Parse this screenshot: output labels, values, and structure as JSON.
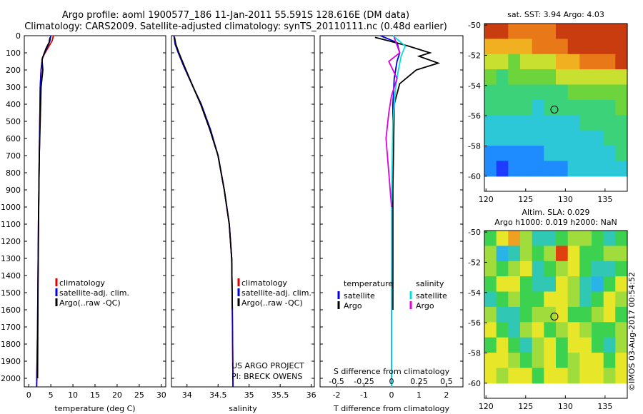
{
  "header": {
    "title_line1": "Argo profile: aoml 1900577_186 11-Jan-2011 55.591S 128.616E (DM data)",
    "title_line2": "Climatology: CARS2009. Satellite-adjusted climatology: synTS_20110111.nc (0.48d earlier)"
  },
  "credit": {
    "project": "US ARGO PROJECT",
    "pi": "PI: BRECK OWENS",
    "stamp": "©IMOS 03-Aug-2017 00:54:52"
  },
  "chart_data": [
    {
      "id": "temperature",
      "type": "line",
      "xlabel": "temperature (deg C)",
      "ylabel": "",
      "xlim": [
        -1,
        31
      ],
      "ylim": [
        2050,
        0
      ],
      "xticks": [
        0,
        5,
        10,
        15,
        20,
        25,
        30
      ],
      "yticks": [
        0,
        100,
        200,
        300,
        400,
        500,
        600,
        700,
        800,
        900,
        1000,
        1100,
        1200,
        1300,
        1400,
        1500,
        1600,
        1700,
        1800,
        1900,
        2000
      ],
      "legend": [
        "climatology",
        "satellite-adj. clim.",
        "Argo(..raw -QC)"
      ],
      "legend_colors": [
        "#e00000",
        "#0000e0",
        "#000000"
      ],
      "series": [
        {
          "name": "climatology",
          "color": "#e00000",
          "x": [
            5.6,
            5.3,
            4.6,
            3.7,
            3.1,
            2.8,
            2.6,
            2.5,
            2.4,
            2.3,
            2.2,
            2.1,
            2.0,
            1.9,
            1.8
          ],
          "y": [
            0,
            30,
            60,
            100,
            130,
            200,
            300,
            500,
            700,
            900,
            1100,
            1400,
            1700,
            1900,
            2050
          ]
        },
        {
          "name": "satellite-adj. clim.",
          "color": "#0000e0",
          "x": [
            5.0,
            4.8,
            4.3,
            3.6,
            3.1,
            2.8,
            2.6,
            2.5,
            2.4,
            2.3,
            2.2,
            2.1,
            2.0,
            1.9,
            1.8
          ],
          "y": [
            0,
            30,
            60,
            100,
            130,
            200,
            300,
            500,
            700,
            900,
            1100,
            1400,
            1700,
            1900,
            2050
          ]
        },
        {
          "name": "Argo(..raw -QC)",
          "color": "#000000",
          "x": [
            4.8,
            4.6,
            4.0,
            3.4,
            3.0,
            3.2,
            2.8,
            2.6,
            2.4,
            2.3,
            2.2,
            2.1,
            2.0
          ],
          "y": [
            10,
            40,
            70,
            110,
            140,
            200,
            300,
            500,
            700,
            900,
            1200,
            1500,
            2000
          ]
        }
      ]
    },
    {
      "id": "salinity",
      "type": "line",
      "xlabel": "salinity",
      "ylabel": "",
      "xlim": [
        33.75,
        36.05
      ],
      "ylim": [
        2050,
        0
      ],
      "xticks": [
        34,
        34.5,
        35,
        35.5,
        36
      ],
      "legend": [
        "climatology",
        "satellite-adj. clim.",
        "Argo(..raw -QC)"
      ],
      "legend_colors": [
        "#e00000",
        "#0000e0",
        "#000000"
      ],
      "series": [
        {
          "name": "climatology",
          "color": "#e00000",
          "x": [
            33.79,
            33.81,
            33.86,
            33.95,
            34.1,
            34.22,
            34.37,
            34.5,
            34.6,
            34.68,
            34.72,
            34.73,
            34.74
          ],
          "y": [
            0,
            50,
            100,
            180,
            300,
            400,
            550,
            700,
            900,
            1100,
            1300,
            1600,
            2050
          ]
        },
        {
          "name": "satellite-adj. clim.",
          "color": "#0000e0",
          "x": [
            33.79,
            33.81,
            33.86,
            33.95,
            34.1,
            34.23,
            34.38,
            34.5,
            34.6,
            34.68,
            34.72,
            34.73,
            34.74
          ],
          "y": [
            0,
            50,
            100,
            180,
            300,
            400,
            550,
            700,
            900,
            1100,
            1300,
            1600,
            2050
          ]
        },
        {
          "name": "Argo(..raw -QC)",
          "color": "#000000",
          "x": [
            33.8,
            33.82,
            33.87,
            33.96,
            34.1,
            34.22,
            34.37,
            34.5,
            34.6,
            34.68,
            34.72,
            34.73
          ],
          "y": [
            10,
            50,
            100,
            180,
            300,
            400,
            550,
            700,
            900,
            1100,
            1300,
            1600
          ]
        }
      ]
    },
    {
      "id": "difference",
      "type": "line",
      "xlabel": "T difference from climatology",
      "xlabel_top": "S difference from climatology",
      "xlim": [
        -2.6,
        2.6
      ],
      "ylim": [
        2050,
        0
      ],
      "xticks": [
        -2,
        -1,
        0,
        1,
        2
      ],
      "xticks_top": [
        -0.5,
        -0.25,
        0,
        0.25,
        0.5
      ],
      "xticks_top_labels": [
        "-0.5",
        "-0.25",
        "0",
        "0.25",
        "0.5"
      ],
      "legend_headers": [
        "temperature",
        "salinity"
      ],
      "legend_left": [
        "satellite",
        "Argo"
      ],
      "legend_left_colors": [
        "#0000e0",
        "#000000"
      ],
      "legend_right": [
        "satellite",
        "Argo"
      ],
      "legend_right_colors": [
        "#00e0e0",
        "#e000e0"
      ],
      "series": [
        {
          "name": "T satellite",
          "color": "#0000e0",
          "x": [
            -0.4,
            0.2,
            0.3,
            0.2,
            0.1,
            0.05,
            0.05,
            0.03,
            0.0,
            0.0
          ],
          "y": [
            0,
            40,
            100,
            150,
            250,
            400,
            700,
            1000,
            1500,
            2050
          ]
        },
        {
          "name": "T Argo",
          "color": "#000000",
          "x": [
            -0.6,
            -0.1,
            0.6,
            1.4,
            1.0,
            1.7,
            0.9,
            0.3,
            0.1,
            0.08,
            0.05,
            0.05,
            0.05
          ],
          "y": [
            10,
            30,
            60,
            100,
            120,
            160,
            200,
            280,
            400,
            600,
            900,
            1300,
            1600
          ]
        },
        {
          "name": "S satellite",
          "color": "#00e0e0",
          "x": [
            0.05,
            0.5,
            0.35,
            0.25,
            0.15,
            0.05,
            0.0,
            0.0
          ],
          "y": [
            0,
            60,
            120,
            200,
            300,
            500,
            1000,
            2050
          ]
        },
        {
          "name": "S Argo",
          "color": "#e000e0",
          "x": [
            0.1,
            0.3,
            -0.1,
            0.2,
            0.0,
            -0.1,
            -0.2,
            -0.1,
            0.0
          ],
          "y": [
            10,
            100,
            150,
            250,
            350,
            450,
            600,
            800,
            1000
          ]
        }
      ]
    },
    {
      "id": "sst_map",
      "type": "heatmap",
      "title": "sat. SST: 3.94 Argo: 4.03",
      "xticks": [
        120,
        125,
        130,
        135
      ],
      "yticks": [
        -50,
        -52,
        -54,
        -56,
        -58,
        -60
      ],
      "xlim": [
        119.8,
        137.8
      ],
      "ylim": [
        -61,
        -49.9
      ],
      "data_extent_lat": [
        -60,
        -49.9
      ],
      "marker": {
        "lon": 128.616,
        "lat": -55.591
      },
      "values": [
        [
          9.5,
          9.3,
          9.0,
          8.6,
          8.8,
          9.0,
          9.4,
          9.6,
          9.8,
          9.9,
          10.0,
          10.0
        ],
        [
          8.0,
          7.6,
          7.4,
          7.8,
          8.2,
          8.6,
          9.0,
          9.2,
          9.5,
          9.7,
          9.8,
          9.9
        ],
        [
          6.0,
          5.6,
          5.0,
          6.2,
          6.6,
          7.0,
          7.6,
          7.8,
          8.4,
          8.6,
          9.0,
          9.2
        ],
        [
          4.8,
          4.4,
          4.8,
          5.2,
          4.6,
          5.0,
          5.6,
          5.8,
          6.0,
          6.2,
          6.6,
          7.0
        ],
        [
          4.2,
          4.0,
          4.4,
          4.2,
          4.0,
          4.2,
          4.4,
          4.6,
          4.8,
          5.0,
          5.2,
          5.4
        ],
        [
          3.8,
          3.6,
          3.8,
          3.6,
          3.4,
          3.6,
          3.8,
          4.0,
          4.0,
          4.2,
          4.4,
          4.6
        ],
        [
          3.2,
          3.0,
          3.4,
          3.2,
          3.0,
          3.2,
          3.4,
          3.4,
          3.6,
          3.8,
          4.0,
          4.2
        ],
        [
          2.6,
          2.6,
          2.8,
          2.8,
          2.6,
          2.8,
          3.0,
          3.0,
          3.2,
          3.4,
          3.6,
          3.8
        ],
        [
          2.0,
          1.8,
          2.0,
          2.2,
          2.4,
          2.6,
          2.6,
          2.8,
          3.0,
          3.2,
          3.4,
          3.6
        ],
        [
          1.2,
          1.0,
          1.2,
          1.6,
          1.8,
          2.0,
          2.2,
          2.6,
          2.8,
          3.0,
          3.2,
          3.4
        ]
      ]
    },
    {
      "id": "sla_map",
      "type": "heatmap",
      "title": "Altim. SLA: 0.029",
      "subtitle": "Argo h1000: 0.019 h2000: NaN",
      "xticks": [
        120,
        125,
        130,
        135
      ],
      "yticks": [
        -50,
        -52,
        -54,
        -56,
        -58,
        -60
      ],
      "xlim": [
        119.8,
        137.8
      ],
      "ylim": [
        -61,
        -49.9
      ],
      "data_extent_lat": [
        -60,
        -49.9
      ],
      "marker": {
        "lon": 128.616,
        "lat": -55.591
      },
      "values": [
        [
          0.0,
          0.05,
          0.08,
          0.02,
          -0.03,
          -0.05,
          -0.02,
          0.01,
          0.02,
          -0.01,
          -0.03,
          0.0
        ],
        [
          0.02,
          -0.08,
          -0.05,
          0.03,
          0.0,
          0.02,
          0.12,
          0.05,
          0.0,
          -0.02,
          0.01,
          0.03
        ],
        [
          0.03,
          0.0,
          0.02,
          0.05,
          -0.04,
          -0.02,
          0.02,
          0.05,
          0.0,
          -0.05,
          -0.03,
          0.0
        ],
        [
          -0.02,
          0.05,
          0.06,
          0.0,
          -0.05,
          -0.03,
          0.06,
          0.02,
          -0.03,
          -0.06,
          0.0,
          0.04
        ],
        [
          -0.03,
          0.0,
          0.02,
          -0.02,
          0.0,
          0.04,
          0.05,
          0.02,
          -0.04,
          0.0,
          0.05,
          0.02
        ],
        [
          0.02,
          -0.04,
          -0.03,
          0.0,
          0.03,
          0.02,
          0.04,
          0.0,
          -0.02,
          0.02,
          0.04,
          0.0
        ],
        [
          0.05,
          0.0,
          -0.04,
          0.02,
          0.05,
          0.0,
          0.03,
          0.05,
          0.02,
          -0.02,
          0.0,
          0.03
        ],
        [
          0.0,
          0.04,
          0.0,
          -0.03,
          0.02,
          0.05,
          -0.02,
          0.04,
          0.06,
          0.0,
          -0.03,
          0.02
        ],
        [
          0.04,
          0.06,
          0.02,
          0.0,
          0.03,
          0.06,
          0.0,
          0.03,
          0.05,
          0.04,
          0.0,
          0.05
        ],
        [
          0.05,
          0.03,
          0.06,
          0.04,
          0.0,
          0.04,
          0.06,
          0.02,
          0.04,
          0.06,
          0.03,
          0.04
        ]
      ]
    }
  ]
}
